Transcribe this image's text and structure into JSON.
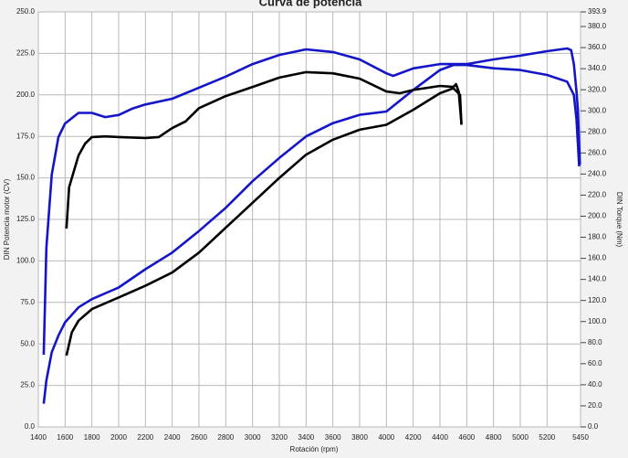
{
  "chart_data": {
    "type": "line",
    "title": "Curva de potencia",
    "x_label": "Rotación (rpm)",
    "y_label": "DIN Potencia motor (CV)",
    "y2_label": "DIN Torque (Nm)",
    "xlim": [
      1400,
      5450
    ],
    "xticks": [
      1400,
      1600,
      1800,
      2000,
      2200,
      2400,
      2600,
      2800,
      3000,
      3200,
      3400,
      3600,
      3800,
      4000,
      4200,
      4400,
      4600,
      4800,
      5000,
      5200,
      5450
    ],
    "ylim": [
      0,
      250
    ],
    "yticks": [
      {
        "value": 0,
        "label": "0.0"
      },
      {
        "value": 25,
        "label": "25.0"
      },
      {
        "value": 50,
        "label": "50.0"
      },
      {
        "value": 75,
        "label": "75.0"
      },
      {
        "value": 100,
        "label": "100.0"
      },
      {
        "value": 125,
        "label": "125.0"
      },
      {
        "value": 150,
        "label": "150.0"
      },
      {
        "value": 175,
        "label": "175.0"
      },
      {
        "value": 200,
        "label": "200.0"
      },
      {
        "value": 225,
        "label": "225.0"
      },
      {
        "value": 250,
        "label": "250.0"
      }
    ],
    "y2lim": [
      0,
      393.9
    ],
    "y2ticks": [
      {
        "value": 0,
        "label": "0.0"
      },
      {
        "value": 20,
        "label": "20.0"
      },
      {
        "value": 40,
        "label": "40.0"
      },
      {
        "value": 60,
        "label": "60.0"
      },
      {
        "value": 80,
        "label": "80.0"
      },
      {
        "value": 100,
        "label": "100.0"
      },
      {
        "value": 120,
        "label": "120.0"
      },
      {
        "value": 140,
        "label": "140.0"
      },
      {
        "value": 160,
        "label": "160.0"
      },
      {
        "value": 180,
        "label": "180.0"
      },
      {
        "value": 200,
        "label": "200.0"
      },
      {
        "value": 220,
        "label": "220.0"
      },
      {
        "value": 240,
        "label": "240.0"
      },
      {
        "value": 260,
        "label": "260.0"
      },
      {
        "value": 280,
        "label": "280.0"
      },
      {
        "value": 300,
        "label": "300.0"
      },
      {
        "value": 320,
        "label": "320.0"
      },
      {
        "value": 340,
        "label": "340.0"
      },
      {
        "value": 360,
        "label": "360.0"
      },
      {
        "value": 380,
        "label": "380.0"
      },
      393.9
    ],
    "grid": true,
    "series": [
      {
        "color": "#1515c8",
        "axis": "y",
        "x": [
          1440,
          1460,
          1500,
          1550,
          1600,
          1700,
          1800,
          2000,
          2200,
          2400,
          2600,
          2800,
          3000,
          3200,
          3400,
          3600,
          3800,
          4000,
          4200,
          4400,
          4500,
          4600,
          4800,
          5000,
          5200,
          5350,
          5400,
          5420,
          5440
        ],
        "values": [
          14,
          28,
          45,
          55,
          63,
          72,
          77,
          84,
          95,
          105,
          118,
          132,
          148,
          162,
          175,
          183,
          188,
          190,
          203,
          215,
          218,
          218,
          216,
          215,
          212,
          208,
          200,
          185,
          157
        ]
      },
      {
        "color": "#1515c8",
        "axis": "y2",
        "x": [
          1440,
          1460,
          1500,
          1550,
          1600,
          1700,
          1800,
          1900,
          2000,
          2100,
          2200,
          2400,
          2600,
          2800,
          3000,
          3200,
          3400,
          3600,
          3800,
          4000,
          4050,
          4200,
          4400,
          4600,
          4800,
          5000,
          5200,
          5350,
          5380,
          5400,
          5420,
          5430,
          5445
        ],
        "values": [
          68.5,
          170,
          239.5,
          275,
          288,
          298,
          298,
          294,
          296,
          302,
          306,
          311.5,
          322,
          332.5,
          344.4,
          353,
          358.3,
          355.8,
          348.8,
          335.6,
          333.2,
          340.3,
          344.4,
          344.4,
          348.8,
          352.3,
          356.6,
          359.2,
          357.6,
          344.4,
          318,
          301,
          249
        ]
      },
      {
        "color": "#000000",
        "axis": "y",
        "x": [
          1610,
          1650,
          1700,
          1800,
          2000,
          2200,
          2400,
          2600,
          2800,
          3000,
          3200,
          3400,
          3600,
          3800,
          4000,
          4200,
          4400,
          4500,
          4550,
          4560
        ],
        "values": [
          43,
          57,
          64,
          71,
          78,
          85,
          93,
          105,
          120,
          135,
          150,
          164,
          173,
          179,
          182,
          191,
          201,
          204,
          200,
          182
        ]
      },
      {
        "color": "#000000",
        "axis": "y2",
        "x": [
          1610,
          1630,
          1700,
          1750,
          1800,
          1900,
          2000,
          2200,
          2300,
          2400,
          2500,
          2600,
          2800,
          3000,
          3200,
          3400,
          3600,
          3800,
          4000,
          4100,
          4200,
          4400,
          4500,
          4520,
          4540,
          4560
        ],
        "values": [
          188.3,
          227.4,
          257.6,
          269,
          275.1,
          275.7,
          275.1,
          274.2,
          275.1,
          283.6,
          290,
          302.5,
          314,
          322.7,
          331.5,
          336.7,
          335.6,
          330.6,
          318.3,
          316.7,
          319.8,
          323.6,
          322.7,
          325.4,
          318.3,
          288.3
        ]
      }
    ]
  }
}
